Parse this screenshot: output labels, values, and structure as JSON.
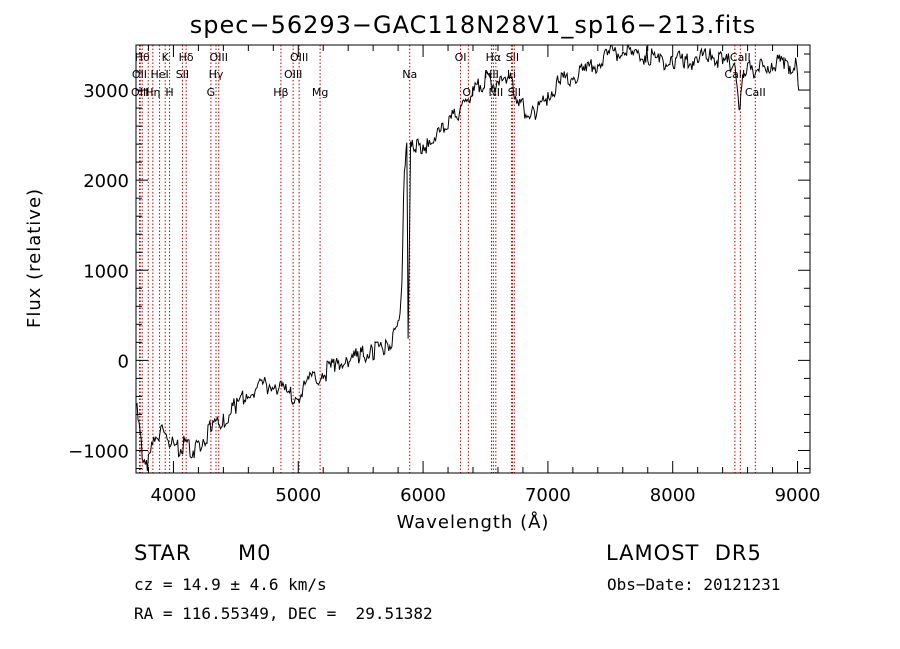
{
  "chart_data": {
    "type": "line",
    "title": "spec−56293−GAC118N28V1_sp16−213.fits",
    "xlabel": "Wavelength (Å)",
    "ylabel": "Flux (relative)",
    "xlim": [
      3700,
      9100
    ],
    "ylim": [
      -1250,
      3500
    ],
    "xticks": [
      4000,
      5000,
      6000,
      7000,
      8000,
      9000
    ],
    "xtick_labels": [
      "4000",
      "5000",
      "6000",
      "7000",
      "8000",
      "9000"
    ],
    "yticks": [
      -1000,
      0,
      1000,
      2000,
      3000
    ],
    "ytick_labels": [
      "−1000",
      "0",
      "1000",
      "2000",
      "3000"
    ],
    "grid": false,
    "line_color": "#000000",
    "marker_color": "#c00000",
    "series": [
      {
        "x": [
          3700,
          3750,
          3800,
          3850,
          3900,
          3950,
          4000,
          4050,
          4100,
          4150,
          4200,
          4300,
          4400,
          4500,
          4600,
          4700,
          4800,
          4900,
          5000,
          5100,
          5200,
          5300,
          5400,
          5500,
          5600,
          5700,
          5750,
          5800,
          5830,
          5850,
          5870,
          5880,
          5900,
          5920,
          5950,
          6000,
          6050,
          6100,
          6150,
          6200,
          6250,
          6300,
          6350,
          6400,
          6450,
          6500,
          6550,
          6600,
          6650,
          6700,
          6750,
          6800,
          6900,
          7000,
          7100,
          7200,
          7300,
          7400,
          7500,
          7600,
          7700,
          7800,
          7900,
          8000,
          8100,
          8200,
          8300,
          8400,
          8500,
          8540,
          8560,
          8600,
          8650,
          8700,
          8800,
          8900,
          9000,
          9010
        ],
        "y": [
          -500,
          -1000,
          -1150,
          -850,
          -800,
          -850,
          -950,
          -1000,
          -900,
          -1000,
          -950,
          -750,
          -700,
          -500,
          -350,
          -300,
          -250,
          -350,
          -400,
          -200,
          -150,
          -50,
          0,
          50,
          100,
          150,
          250,
          400,
          800,
          2200,
          2400,
          300,
          2350,
          2400,
          2350,
          2400,
          2350,
          2500,
          2550,
          2650,
          2700,
          2800,
          2900,
          2950,
          3050,
          3100,
          3100,
          3000,
          3200,
          3100,
          2950,
          2800,
          2750,
          2950,
          3100,
          3150,
          3200,
          3300,
          3400,
          3450,
          3350,
          3400,
          3300,
          3350,
          3300,
          3350,
          3400,
          3300,
          3300,
          2700,
          3200,
          3250,
          3200,
          3250,
          3300,
          3300,
          3250,
          3000
        ]
      }
    ],
    "line_markers": [
      {
        "x": 3750,
        "label": "Hθ",
        "row": 0
      },
      {
        "x": 3728,
        "label": "OII",
        "row": 1
      },
      {
        "x": 3734,
        "label": "OIII",
        "row": 2
      },
      {
        "x": 3798,
        "label": "",
        "row": 0
      },
      {
        "x": 3835,
        "label": "Hη",
        "row": 2
      },
      {
        "x": 3889,
        "label": "HeI",
        "row": 1
      },
      {
        "x": 3934,
        "label": "K",
        "row": 0
      },
      {
        "x": 3969,
        "label": "H",
        "row": 2
      },
      {
        "x": 4072,
        "label": "SII",
        "row": 1
      },
      {
        "x": 4102,
        "label": "Hδ",
        "row": 0
      },
      {
        "x": 4300,
        "label": "G",
        "row": 2
      },
      {
        "x": 4341,
        "label": "Hγ",
        "row": 1
      },
      {
        "x": 4363,
        "label": "OIII",
        "row": 0
      },
      {
        "x": 4861,
        "label": "Hβ",
        "row": 2
      },
      {
        "x": 4959,
        "label": "OIII",
        "row": 1
      },
      {
        "x": 5007,
        "label": "OIII",
        "row": 0
      },
      {
        "x": 5175,
        "label": "Mg",
        "row": 2
      },
      {
        "x": 5893,
        "label": "Na",
        "row": 1
      },
      {
        "x": 6300,
        "label": "OI",
        "row": 0
      },
      {
        "x": 6363,
        "label": "OI",
        "row": 2
      },
      {
        "x": 6548,
        "label": "NII",
        "row": 1
      },
      {
        "x": 6563,
        "label": "Hα",
        "row": 0
      },
      {
        "x": 6583,
        "label": "NII",
        "row": 2
      },
      {
        "x": 6708,
        "label": "Li",
        "row": 1
      },
      {
        "x": 6716,
        "label": "SII",
        "row": 0
      },
      {
        "x": 6731,
        "label": "SII",
        "row": 2
      },
      {
        "x": 8498,
        "label": "CaII",
        "row": 1
      },
      {
        "x": 8542,
        "label": "CaII",
        "row": 0
      },
      {
        "x": 8662,
        "label": "CaII",
        "row": 2
      }
    ]
  },
  "info": {
    "object_class": "STAR",
    "subclass": "M0",
    "survey": "LAMOST  DR5",
    "redshift": "cz = 14.9 ± 4.6 km/s",
    "obs_date": "Obs−Date: 20121231",
    "coords": "RA = 116.55349, DEC =  29.51382"
  }
}
